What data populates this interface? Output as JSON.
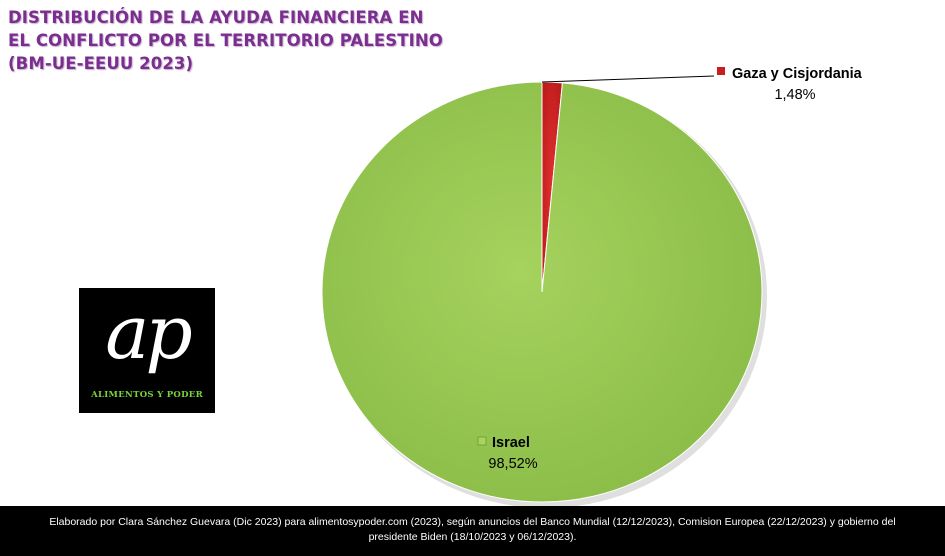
{
  "title_lines": [
    "DISTRIBUCIÓN DE LA AYUDA FINANCIERA EN",
    "EL CONFLICTO POR EL TERRITORIO PALESTINO",
    "(BM-UE-EEUU 2023)"
  ],
  "chart_data": {
    "type": "pie",
    "title": "DISTRIBUCIÓN DE LA AYUDA FINANCIERA EN EL CONFLICTO POR EL TERRITORIO PALESTINO (BM-UE-EEUU 2023)",
    "slices": [
      {
        "name": "Gaza y Cisjordania",
        "value": 1.48,
        "label": "1,48%",
        "color": "#d42020"
      },
      {
        "name": "Israel",
        "value": 98.52,
        "label": "98,52%",
        "color": "#92c44c"
      }
    ],
    "legend": "none"
  },
  "logo": {
    "mark": "ap",
    "text": "ALIMENTOS Y PODER"
  },
  "footer": {
    "line1": "Elaborado por Clara Sánchez Guevara (Dic 2023) para alimentosypoder.com   (2023), según anuncios  del Banco Mundial (12/12/2023), Comision  Europea (22/12/2023) y gobierno del",
    "line2": "presidente  Biden  (18/10/2023 y 06/12/2023)."
  }
}
